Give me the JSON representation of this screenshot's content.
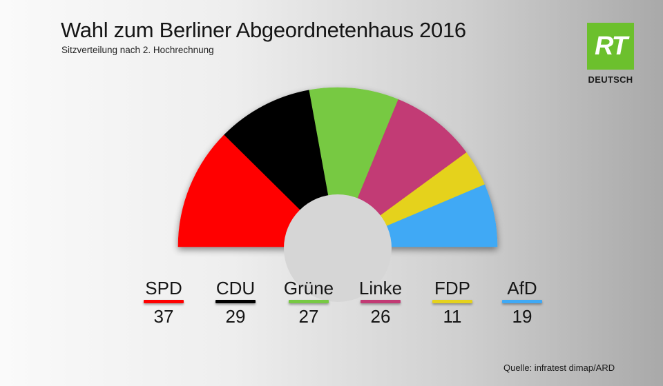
{
  "header": {
    "title": "Wahl zum Berliner Abgeordnetenhaus 2016",
    "subtitle": "Sitzverteilung nach 2. Hochrechnung"
  },
  "logo": {
    "mark": "RT",
    "caption": "DEUTSCH",
    "color": "#6cc02d"
  },
  "source": "Quelle: infratest dimap/ARD",
  "chart_data": {
    "type": "pie",
    "variant": "parliament-semicircle",
    "title": "Wahl zum Berliner Abgeordnetenhaus 2016",
    "subtitle": "Sitzverteilung nach 2. Hochrechnung",
    "categories": [
      "SPD",
      "CDU",
      "Grüne",
      "Linke",
      "FDP",
      "AfD"
    ],
    "values": [
      37,
      29,
      27,
      26,
      11,
      19
    ],
    "colors": [
      "#ff0000",
      "#000000",
      "#77c943",
      "#c23a74",
      "#e5d21c",
      "#3fa9f5"
    ],
    "legend_placement": "bottom"
  }
}
